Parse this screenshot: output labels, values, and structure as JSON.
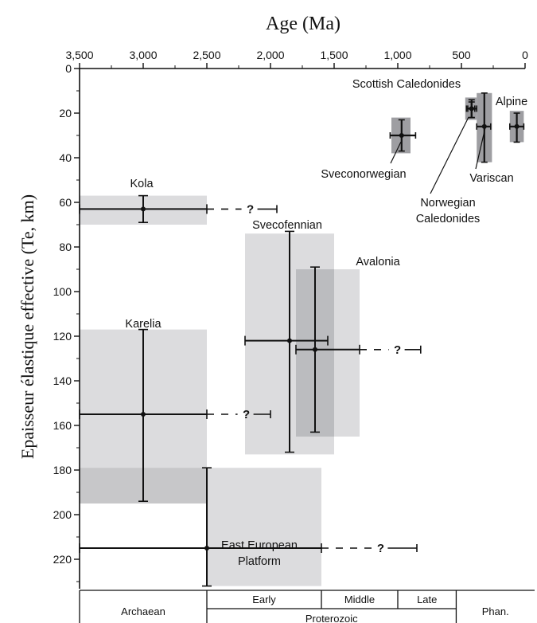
{
  "chart_data": {
    "type": "scatter",
    "title": "",
    "xlabel": "Age (Ma)",
    "ylabel": "Epaisseur élastique effective (Te, km)",
    "x_reversed": true,
    "xlim": [
      3500,
      0
    ],
    "ylim": [
      0,
      232
    ],
    "y_inverted": true,
    "grid": false,
    "x_ticks": [
      {
        "value": 3500,
        "label": "3,500"
      },
      {
        "value": 3000,
        "label": "3,000"
      },
      {
        "value": 2500,
        "label": "2,500"
      },
      {
        "value": 2000,
        "label": "2,000"
      },
      {
        "value": 1500,
        "label": "1,500"
      },
      {
        "value": 1000,
        "label": "1,000"
      },
      {
        "value": 500,
        "label": "500"
      },
      {
        "value": 0,
        "label": "0"
      }
    ],
    "y_ticks": [
      {
        "value": 0,
        "label": "0"
      },
      {
        "value": 20,
        "label": "20"
      },
      {
        "value": 40,
        "label": "40"
      },
      {
        "value": 60,
        "label": "60"
      },
      {
        "value": 80,
        "label": "80"
      },
      {
        "value": 100,
        "label": "100"
      },
      {
        "value": 120,
        "label": "120"
      },
      {
        "value": 140,
        "label": "140"
      },
      {
        "value": 160,
        "label": "160"
      },
      {
        "value": 180,
        "label": "180"
      },
      {
        "value": 200,
        "label": "200"
      },
      {
        "value": 220,
        "label": "220"
      }
    ],
    "series": [
      {
        "name": "Kola",
        "age": 3000,
        "age_min": 3500,
        "age_max": 2500,
        "te": 63,
        "te_min": 57,
        "te_max": 69,
        "box_age": [
          3500,
          2500
        ],
        "box_te": [
          57,
          70
        ],
        "extension_to": 1950
      },
      {
        "name": "Karelia",
        "age": 3000,
        "age_min": 3500,
        "age_max": 2500,
        "te": 155,
        "te_min": 117,
        "te_max": 194,
        "box_age": [
          3500,
          2500
        ],
        "box_te": [
          117,
          195
        ],
        "extension_to": 2000
      },
      {
        "name": "East European Platform",
        "age": 2500,
        "age_min": 3500,
        "age_max": 1600,
        "te": 215,
        "te_min": 179,
        "te_max": 232,
        "box_age": [
          2500,
          1600
        ],
        "box_te": [
          179,
          232
        ],
        "box2_age": [
          3500,
          2500
        ],
        "box2_te": [
          179,
          195
        ],
        "extension_to": 850
      },
      {
        "name": "Svecofennian",
        "age": 1850,
        "age_min": 2200,
        "age_max": 1550,
        "te": 122,
        "te_min": 73,
        "te_max": 172,
        "box_age": [
          2200,
          1500
        ],
        "box_te": [
          74,
          173
        ],
        "extension_to": null
      },
      {
        "name": "Avalonia",
        "age": 1650,
        "age_min": 1800,
        "age_max": 1300,
        "te": 126,
        "te_min": 89,
        "te_max": 163,
        "box_age": [
          1800,
          1300
        ],
        "box_te": [
          90,
          165
        ],
        "extension_to": 820
      },
      {
        "name": "Sveconorwegian",
        "age": 970,
        "age_min": 1060,
        "age_max": 860,
        "te": 30,
        "te_min": 23,
        "te_max": 37,
        "box_age": [
          1050,
          900
        ],
        "box_te": [
          22,
          38
        ],
        "extension_to": null
      },
      {
        "name": "Scottish Caledonides",
        "age": 420,
        "age_min": 460,
        "age_max": 380,
        "te": 18,
        "te_min": 15,
        "te_max": 22,
        "box_age": [
          470,
          380
        ],
        "box_te": [
          13,
          23
        ],
        "extension_to": null
      },
      {
        "name": "Norwegian Caledonides",
        "age": 420,
        "age_min": 450,
        "age_max": 395,
        "te": 18,
        "te_min": 14,
        "te_max": 22,
        "box_age": [
          450,
          395
        ],
        "box_te": [
          14,
          22
        ],
        "extension_to": null
      },
      {
        "name": "Variscan",
        "age": 320,
        "age_min": 380,
        "age_max": 270,
        "te": 26,
        "te_min": 11,
        "te_max": 42,
        "box_age": [
          380,
          260
        ],
        "box_te": [
          11,
          42
        ],
        "extension_to": null
      },
      {
        "name": "Alpine",
        "age": 65,
        "age_min": 120,
        "age_max": 10,
        "te": 26,
        "te_min": 20,
        "te_max": 33,
        "box_age": [
          120,
          10
        ],
        "box_te": [
          19,
          33
        ],
        "extension_to": null
      }
    ],
    "annotations": [
      {
        "text": "?"
      }
    ],
    "eras": [
      {
        "label": "Archaean",
        "from": 3500,
        "to": 2500
      },
      {
        "label": "Early",
        "from": 2500,
        "to": 1600
      },
      {
        "label": "Middle",
        "from": 1600,
        "to": 1000
      },
      {
        "label": "Late",
        "from": 1000,
        "to": 541
      },
      {
        "label": "Phan.",
        "from": 541,
        "to": 0
      },
      {
        "label": "Proterozoic",
        "from": 2500,
        "to": 541
      }
    ]
  }
}
